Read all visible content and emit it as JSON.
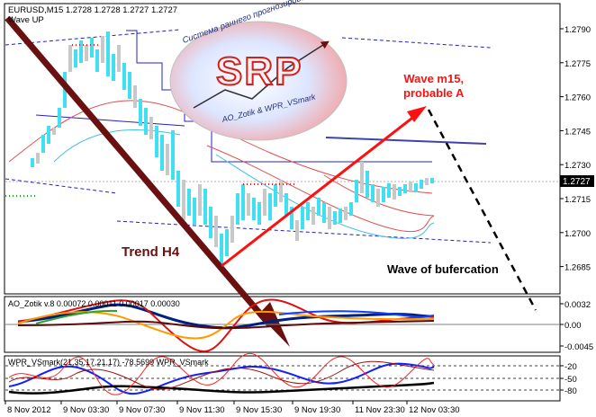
{
  "header": {
    "symbol_line": "EURUSD,M15  1.2728 1.2728 1.2727 1.2727",
    "indicator_name": "Wave UP"
  },
  "logo": {
    "main_text": "SRP",
    "arc_text": "Система раннего прогнозирования",
    "sub_text": "AO_Zotik & WPR_VSmark"
  },
  "annotations": {
    "trend": "Trend H4",
    "wave": "Wave m15,\nprobable A",
    "bifurcation": "Wave of bufercation"
  },
  "price_axis": {
    "ticks": [
      "1.2790",
      "1.2775",
      "1.2760",
      "1.2745",
      "1.2730",
      "1.2715",
      "1.2700",
      "1.2685"
    ],
    "current": "1.2727",
    "current_bg": "#000000"
  },
  "ao_panel": {
    "label": "AO_Zotik v.8 0.00072 0.00011 0.00017 0.00030",
    "ticks": [
      "0.0032",
      "0.00",
      "-0.0045"
    ]
  },
  "wpr_panel": {
    "label": "WPR_VSmark(21,35,17,21,17) -78.5699  WPR_VSmark",
    "ticks": [
      "-20",
      "-50",
      "-80"
    ]
  },
  "time_axis": [
    "8 Nov 2012",
    "9 Nov 03:30",
    "9 Nov 07:30",
    "9 Nov 11:30",
    "9 Nov 15:30",
    "9 Nov 19:30",
    "11 Nov 23:30",
    "12 Nov 03:30"
  ],
  "colors": {
    "candle_up": "#40e0f0",
    "candle_down": "#c8c8c8",
    "trend_arrow": "#6a1010",
    "wave_arrow": "#ff1010",
    "band_blue": "#2020c8",
    "envelope_red": "#e05050"
  }
}
